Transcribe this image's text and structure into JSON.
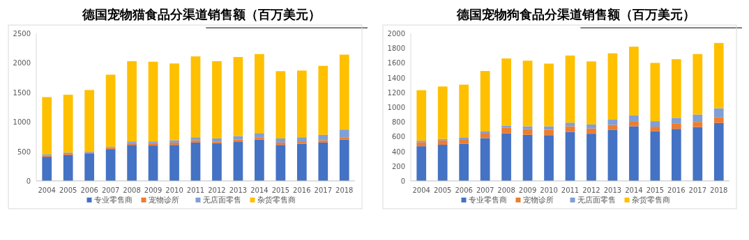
{
  "chart_data": [
    {
      "type": "bar",
      "title": "德国宠物猫食品分渠道销售额（百万美元）",
      "stacked": true,
      "legend": "bottom",
      "ylim": [
        0,
        2500
      ],
      "yticks": [
        0,
        500,
        1000,
        1500,
        2000,
        2500
      ],
      "categories": [
        "2004",
        "2005",
        "2006",
        "2007",
        "2008",
        "2009",
        "2010",
        "2011",
        "2012",
        "2013",
        "2014",
        "2015",
        "2016",
        "2017",
        "2018"
      ],
      "series": [
        {
          "name": "专业零售商",
          "color": "#4472c4",
          "values": [
            410,
            440,
            460,
            540,
            610,
            600,
            610,
            650,
            640,
            660,
            700,
            610,
            630,
            650,
            700
          ]
        },
        {
          "name": "宠物诊所",
          "color": "#ed7d31",
          "values": [
            20,
            20,
            20,
            20,
            30,
            40,
            40,
            40,
            30,
            40,
            40,
            40,
            30,
            40,
            40
          ]
        },
        {
          "name": "无店面零售",
          "color": "#7f9fd6",
          "values": [
            20,
            20,
            20,
            20,
            30,
            30,
            40,
            50,
            50,
            60,
            70,
            70,
            80,
            90,
            130
          ]
        },
        {
          "name": "杂货零售商",
          "color": "#ffc000",
          "values": [
            970,
            980,
            1040,
            1220,
            1360,
            1350,
            1300,
            1370,
            1310,
            1340,
            1340,
            1140,
            1130,
            1170,
            1270
          ]
        }
      ]
    },
    {
      "type": "bar",
      "title": "德国宠物狗食品分渠道销售额（百万美元）",
      "stacked": true,
      "legend": "bottom",
      "ylim": [
        0,
        2000
      ],
      "yticks": [
        0,
        200,
        400,
        600,
        800,
        1000,
        1200,
        1400,
        1600,
        1800,
        2000
      ],
      "categories": [
        "2004",
        "2005",
        "2006",
        "2007",
        "2008",
        "2009",
        "2010",
        "2011",
        "2012",
        "2013",
        "2014",
        "2015",
        "2016",
        "2017",
        "2018"
      ],
      "series": [
        {
          "name": "专业零售商",
          "color": "#4472c4",
          "values": [
            470,
            490,
            505,
            580,
            645,
            625,
            620,
            665,
            640,
            690,
            740,
            675,
            705,
            730,
            785
          ]
        },
        {
          "name": "宠物诊所",
          "color": "#ed7d31",
          "values": [
            55,
            60,
            60,
            70,
            75,
            75,
            75,
            75,
            70,
            70,
            70,
            60,
            70,
            70,
            80
          ]
        },
        {
          "name": "无店面零售",
          "color": "#7f9fd6",
          "values": [
            20,
            20,
            20,
            20,
            30,
            40,
            45,
            50,
            55,
            70,
            80,
            75,
            80,
            100,
            120
          ]
        },
        {
          "name": "杂货零售商",
          "color": "#ffc000",
          "values": [
            685,
            710,
            720,
            820,
            910,
            890,
            850,
            910,
            855,
            900,
            930,
            790,
            795,
            820,
            885
          ]
        }
      ]
    }
  ]
}
